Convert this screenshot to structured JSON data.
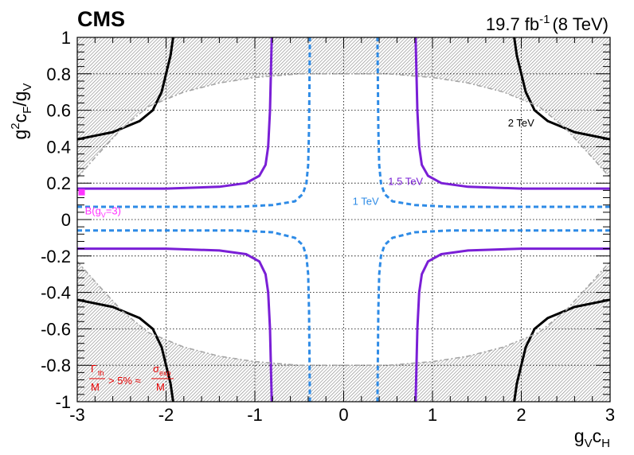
{
  "header": {
    "experiment": "CMS",
    "lumi": "19.7 fb",
    "lumi_exp": "-1",
    "energy": "(8 TeV)"
  },
  "colors": {
    "black_curve": "#000000",
    "purple_curve": "#7a1fd6",
    "blue_curve": "#2e8be6",
    "gray_curve": "#a6a6a6",
    "hatch": "#8c8c8c",
    "benchmark": "#ff33ff",
    "note": "#e60000"
  },
  "chart_data": {
    "type": "line",
    "title": "",
    "xlabel": "g_V c_H",
    "ylabel": "g^2 c_F / g_V",
    "xlim": [
      -3,
      3
    ],
    "ylim": [
      -1,
      1
    ],
    "x_ticks": [
      -3,
      -2,
      -1,
      0,
      1,
      2,
      3
    ],
    "y_ticks": [
      -1,
      -0.8,
      -0.6,
      -0.4,
      -0.2,
      0,
      0.2,
      0.4,
      0.6,
      0.8,
      1
    ],
    "grid": true,
    "series": [
      {
        "name": "2 TeV",
        "color": "black",
        "style": "solid",
        "label_at": [
          1.85,
          0.51
        ],
        "branches": [
          [
            [
              -3.0,
              0.44
            ],
            [
              -2.6,
              0.48
            ],
            [
              -2.3,
              0.54
            ],
            [
              -2.15,
              0.6
            ],
            [
              -2.05,
              0.7
            ],
            [
              -2.0,
              0.8
            ],
            [
              -1.95,
              0.9
            ],
            [
              -1.92,
              1.0
            ]
          ],
          [
            [
              3.0,
              0.44
            ],
            [
              2.6,
              0.48
            ],
            [
              2.3,
              0.54
            ],
            [
              2.15,
              0.6
            ],
            [
              2.05,
              0.7
            ],
            [
              2.0,
              0.8
            ],
            [
              1.95,
              0.9
            ],
            [
              1.92,
              1.0
            ]
          ],
          [
            [
              -3.0,
              -0.44
            ],
            [
              -2.6,
              -0.48
            ],
            [
              -2.3,
              -0.54
            ],
            [
              -2.15,
              -0.6
            ],
            [
              -2.05,
              -0.7
            ],
            [
              -2.0,
              -0.8
            ],
            [
              -1.95,
              -0.9
            ],
            [
              -1.92,
              -1.0
            ]
          ],
          [
            [
              3.0,
              -0.44
            ],
            [
              2.6,
              -0.48
            ],
            [
              2.3,
              -0.54
            ],
            [
              2.15,
              -0.6
            ],
            [
              2.05,
              -0.7
            ],
            [
              2.0,
              -0.8
            ],
            [
              1.95,
              -0.9
            ],
            [
              1.92,
              -1.0
            ]
          ]
        ]
      },
      {
        "name": "1.5 TeV",
        "color": "purple",
        "style": "solid",
        "label_at": [
          0.5,
          0.19
        ],
        "branches": [
          [
            [
              -3.0,
              0.17
            ],
            [
              -2.0,
              0.17
            ],
            [
              -1.4,
              0.18
            ],
            [
              -1.1,
              0.2
            ],
            [
              -0.95,
              0.24
            ],
            [
              -0.88,
              0.3
            ],
            [
              -0.85,
              0.4
            ],
            [
              -0.83,
              0.6
            ],
            [
              -0.82,
              0.8
            ],
            [
              -0.81,
              1.0
            ]
          ],
          [
            [
              3.0,
              0.17
            ],
            [
              2.0,
              0.17
            ],
            [
              1.4,
              0.18
            ],
            [
              1.1,
              0.2
            ],
            [
              0.95,
              0.24
            ],
            [
              0.88,
              0.3
            ],
            [
              0.85,
              0.4
            ],
            [
              0.83,
              0.6
            ],
            [
              0.82,
              0.8
            ],
            [
              0.81,
              1.0
            ]
          ],
          [
            [
              -3.0,
              -0.16
            ],
            [
              -2.0,
              -0.16
            ],
            [
              -1.4,
              -0.17
            ],
            [
              -1.1,
              -0.19
            ],
            [
              -0.95,
              -0.23
            ],
            [
              -0.88,
              -0.3
            ],
            [
              -0.85,
              -0.4
            ],
            [
              -0.83,
              -0.6
            ],
            [
              -0.82,
              -0.8
            ],
            [
              -0.81,
              -1.0
            ]
          ],
          [
            [
              3.0,
              -0.16
            ],
            [
              2.0,
              -0.16
            ],
            [
              1.4,
              -0.17
            ],
            [
              1.1,
              -0.19
            ],
            [
              0.95,
              -0.23
            ],
            [
              0.88,
              -0.3
            ],
            [
              0.85,
              -0.4
            ],
            [
              0.83,
              -0.6
            ],
            [
              0.82,
              -0.8
            ],
            [
              0.81,
              -1.0
            ]
          ]
        ]
      },
      {
        "name": "1 TeV",
        "color": "blue",
        "style": "dashed",
        "label_at": [
          0.1,
          0.08
        ],
        "branches": [
          [
            [
              -3.0,
              0.07
            ],
            [
              -2.0,
              0.07
            ],
            [
              -1.2,
              0.07
            ],
            [
              -0.8,
              0.08
            ],
            [
              -0.55,
              0.1
            ],
            [
              -0.46,
              0.14
            ],
            [
              -0.42,
              0.2
            ],
            [
              -0.4,
              0.3
            ],
            [
              -0.39,
              0.5
            ],
            [
              -0.38,
              1.0
            ]
          ],
          [
            [
              3.0,
              0.07
            ],
            [
              2.0,
              0.07
            ],
            [
              1.2,
              0.07
            ],
            [
              0.8,
              0.08
            ],
            [
              0.55,
              0.1
            ],
            [
              0.46,
              0.14
            ],
            [
              0.42,
              0.2
            ],
            [
              0.4,
              0.3
            ],
            [
              0.39,
              0.5
            ],
            [
              0.38,
              1.0
            ]
          ],
          [
            [
              -3.0,
              -0.06
            ],
            [
              -2.0,
              -0.06
            ],
            [
              -1.2,
              -0.06
            ],
            [
              -0.8,
              -0.07
            ],
            [
              -0.55,
              -0.1
            ],
            [
              -0.46,
              -0.14
            ],
            [
              -0.42,
              -0.2
            ],
            [
              -0.4,
              -0.3
            ],
            [
              -0.39,
              -0.5
            ],
            [
              -0.38,
              -1.0
            ]
          ],
          [
            [
              3.0,
              -0.06
            ],
            [
              2.0,
              -0.06
            ],
            [
              1.2,
              -0.06
            ],
            [
              0.8,
              -0.07
            ],
            [
              0.55,
              -0.1
            ],
            [
              0.46,
              -0.14
            ],
            [
              0.42,
              -0.2
            ],
            [
              0.4,
              -0.3
            ],
            [
              0.39,
              -0.5
            ],
            [
              0.38,
              -1.0
            ]
          ]
        ]
      },
      {
        "name": "",
        "color": "gray",
        "style": "dash-dot",
        "role": "width boundary (hatched side excluded)",
        "branches": [
          [
            [
              -3.0,
              0.23
            ],
            [
              -2.8,
              0.34
            ],
            [
              -2.5,
              0.5
            ],
            [
              -2.2,
              0.62
            ],
            [
              -1.8,
              0.7
            ],
            [
              -1.4,
              0.75
            ],
            [
              -1.0,
              0.78
            ],
            [
              -0.5,
              0.8
            ],
            [
              0.0,
              0.8
            ],
            [
              0.5,
              0.8
            ],
            [
              1.0,
              0.78
            ],
            [
              1.4,
              0.75
            ],
            [
              1.8,
              0.7
            ],
            [
              2.2,
              0.62
            ],
            [
              2.5,
              0.5
            ],
            [
              2.8,
              0.34
            ],
            [
              3.0,
              0.23
            ]
          ],
          [
            [
              -3.0,
              -0.23
            ],
            [
              -2.8,
              -0.34
            ],
            [
              -2.5,
              -0.5
            ],
            [
              -2.2,
              -0.62
            ],
            [
              -1.8,
              -0.7
            ],
            [
              -1.4,
              -0.75
            ],
            [
              -1.0,
              -0.78
            ],
            [
              -0.5,
              -0.8
            ],
            [
              0.0,
              -0.8
            ],
            [
              0.5,
              -0.8
            ],
            [
              1.0,
              -0.78
            ],
            [
              1.4,
              -0.75
            ],
            [
              1.8,
              -0.7
            ],
            [
              2.2,
              -0.62
            ],
            [
              2.5,
              -0.5
            ],
            [
              2.8,
              -0.34
            ],
            [
              3.0,
              -0.23
            ]
          ]
        ]
      }
    ],
    "benchmark": {
      "label": "B(g",
      "sub": "V",
      "suffix": "=3)",
      "x": -2.95,
      "y": 0.15
    },
    "annotation": {
      "num1": "Γ",
      "num1_sub": "th",
      "den1": "M",
      "mid": "> 5% ≈",
      "num2": "σ",
      "num2_sub": "exp",
      "den2": "M"
    }
  }
}
